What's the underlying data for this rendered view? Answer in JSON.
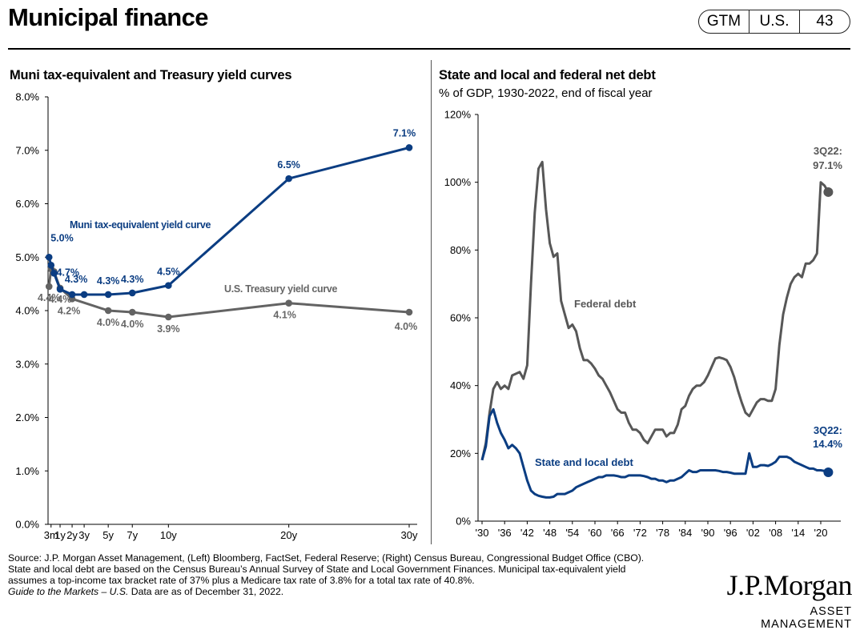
{
  "header": {
    "title": "Municipal finance",
    "badges": [
      "GTM",
      "U.S.",
      "43"
    ]
  },
  "chart_data": [
    {
      "type": "line",
      "title": "Muni tax-equivalent and Treasury yield curves",
      "x_tick_labels": [
        "3m",
        "1y",
        "2y",
        "3y",
        "5y",
        "7y",
        "10y",
        "20y",
        "30y"
      ],
      "x_tick_positions_years": [
        0.25,
        1,
        2,
        3,
        5,
        7,
        10,
        20,
        30
      ],
      "ylim": [
        0,
        8
      ],
      "y_tick_labels": [
        "0.0%",
        "1.0%",
        "2.0%",
        "3.0%",
        "4.0%",
        "5.0%",
        "6.0%",
        "7.0%",
        "8.0%"
      ],
      "grid": false,
      "series": [
        {
          "name": "Muni tax-equivalent yield curve",
          "color": "#0b3d82",
          "x": [
            0.083,
            0.25,
            0.5,
            1,
            2,
            3,
            5,
            7,
            10,
            20,
            30
          ],
          "y": [
            5.0,
            4.85,
            4.7,
            4.4,
            4.3,
            4.3,
            4.3,
            4.33,
            4.47,
            6.47,
            7.05
          ],
          "labels": [
            {
              "i": 0,
              "text": "5.0%"
            },
            {
              "i": 2,
              "text": "4.7%"
            },
            {
              "i": 5,
              "text": "4.3%"
            },
            {
              "i": 6,
              "text": "4.3%"
            },
            {
              "i": 7,
              "text": "4.3%"
            },
            {
              "i": 8,
              "text": "4.5%"
            },
            {
              "i": 9,
              "text": "6.5%"
            },
            {
              "i": 10,
              "text": "7.1%"
            }
          ]
        },
        {
          "name": "U.S. Treasury yield curve",
          "color": "#636363",
          "x": [
            0.083,
            0.25,
            0.5,
            1,
            2,
            5,
            7,
            10,
            20,
            30
          ],
          "y": [
            4.45,
            4.78,
            4.73,
            4.42,
            4.22,
            4.0,
            3.97,
            3.88,
            4.14,
            3.97
          ],
          "labels": [
            {
              "i": 0,
              "text": "4.4%"
            },
            {
              "i": 3,
              "text": "4.4%"
            },
            {
              "i": 4,
              "text": "4.2%"
            },
            {
              "i": 5,
              "text": "4.0%"
            },
            {
              "i": 6,
              "text": "4.0%"
            },
            {
              "i": 7,
              "text": "3.9%"
            },
            {
              "i": 8,
              "text": "4.1%"
            },
            {
              "i": 9,
              "text": "4.0%"
            }
          ]
        }
      ]
    },
    {
      "type": "line",
      "title": "State and local and federal net debt",
      "subtitle": "% of GDP, 1930-2022, end of fiscal year",
      "x_tick_labels": [
        "'30",
        "'36",
        "'42",
        "'48",
        "'54",
        "'60",
        "'66",
        "'72",
        "'78",
        "'84",
        "'90",
        "'96",
        "'02",
        "'08",
        "'14",
        "'20"
      ],
      "ylim": [
        0,
        120
      ],
      "y_tick_labels": [
        "0%",
        "20%",
        "40%",
        "60%",
        "80%",
        "100%",
        "120%"
      ],
      "grid": false,
      "series": [
        {
          "name": "Federal debt",
          "color": "#575757",
          "x": [
            1930,
            1931,
            1932,
            1933,
            1934,
            1935,
            1936,
            1937,
            1938,
            1939,
            1940,
            1941,
            1942,
            1943,
            1944,
            1945,
            1946,
            1947,
            1948,
            1949,
            1950,
            1951,
            1952,
            1953,
            1954,
            1955,
            1956,
            1957,
            1958,
            1959,
            1960,
            1961,
            1962,
            1963,
            1964,
            1965,
            1966,
            1967,
            1968,
            1969,
            1970,
            1971,
            1972,
            1973,
            1974,
            1975,
            1976,
            1977,
            1978,
            1979,
            1980,
            1981,
            1982,
            1983,
            1984,
            1985,
            1986,
            1987,
            1988,
            1989,
            1990,
            1991,
            1992,
            1993,
            1994,
            1995,
            1996,
            1997,
            1998,
            1999,
            2000,
            2001,
            2002,
            2003,
            2004,
            2005,
            2006,
            2007,
            2008,
            2009,
            2010,
            2011,
            2012,
            2013,
            2014,
            2015,
            2016,
            2017,
            2018,
            2019,
            2020,
            2021,
            2022
          ],
          "y": [
            18,
            23,
            32,
            39,
            41,
            39,
            40,
            39,
            43,
            43.5,
            44,
            42,
            46,
            70,
            91,
            104,
            106,
            92,
            82,
            78,
            79,
            65,
            61,
            57,
            58,
            56,
            51,
            47.5,
            47.5,
            46.5,
            45,
            43,
            42,
            40,
            38,
            35.5,
            33,
            32,
            32,
            29,
            27,
            27,
            26,
            24,
            23,
            25,
            27,
            27,
            27,
            25,
            26,
            26,
            28.5,
            33,
            34,
            37,
            39,
            40,
            40,
            41,
            43,
            45.5,
            48,
            48.3,
            48,
            47.5,
            45.5,
            42.5,
            38.5,
            35,
            32,
            31,
            33,
            35,
            36,
            36,
            35.5,
            35.5,
            39,
            52,
            61,
            66,
            70,
            72,
            73,
            72,
            76,
            76,
            77,
            79,
            100,
            99,
            97.1
          ]
        },
        {
          "name": "State and local debt",
          "color": "#0b3d82",
          "x": [
            1930,
            1931,
            1932,
            1933,
            1934,
            1935,
            1936,
            1937,
            1938,
            1939,
            1940,
            1941,
            1942,
            1943,
            1944,
            1945,
            1946,
            1947,
            1948,
            1949,
            1950,
            1951,
            1952,
            1953,
            1954,
            1955,
            1956,
            1957,
            1958,
            1959,
            1960,
            1961,
            1962,
            1963,
            1964,
            1965,
            1966,
            1967,
            1968,
            1969,
            1970,
            1971,
            1972,
            1973,
            1974,
            1975,
            1976,
            1977,
            1978,
            1979,
            1980,
            1981,
            1982,
            1983,
            1984,
            1985,
            1986,
            1987,
            1988,
            1989,
            1990,
            1991,
            1992,
            1993,
            1994,
            1995,
            1996,
            1997,
            1998,
            1999,
            2000,
            2001,
            2002,
            2003,
            2004,
            2005,
            2006,
            2007,
            2008,
            2009,
            2010,
            2011,
            2012,
            2013,
            2014,
            2015,
            2016,
            2017,
            2018,
            2019,
            2020,
            2021,
            2022
          ],
          "y": [
            18,
            22,
            31,
            33,
            29,
            26,
            24,
            21.5,
            22.5,
            21.5,
            20,
            16,
            12,
            9,
            8,
            7.5,
            7.2,
            7.0,
            7.0,
            7.2,
            8,
            8,
            8,
            8.5,
            9,
            10,
            10.5,
            11,
            11.5,
            12,
            12.5,
            13,
            13,
            13.5,
            13.5,
            13.5,
            13.3,
            13,
            13,
            13.5,
            13.5,
            13.5,
            13.5,
            13.3,
            13,
            12.5,
            12.5,
            12,
            12,
            11.5,
            12,
            12,
            12.5,
            13,
            14,
            15,
            14.5,
            14.5,
            15,
            15,
            15,
            15,
            15,
            14.8,
            14.5,
            14.5,
            14.3,
            14,
            14,
            14,
            14,
            20,
            16,
            16,
            16.5,
            16.5,
            16.3,
            16.8,
            17.5,
            19,
            19,
            19,
            18.5,
            17.5,
            17,
            16.5,
            16,
            15.5,
            15.5,
            15,
            15,
            14.8,
            14.4
          ]
        }
      ],
      "annotations": {
        "federal_end": [
          "3Q22:",
          "97.1%"
        ],
        "state_end": [
          "3Q22:",
          "14.4%"
        ]
      }
    }
  ],
  "footer": {
    "line1": "Source: J.P. Morgan Asset Management, (Left) Bloomberg, FactSet, Federal Reserve; (Right) Census Bureau, Congressional Budget Office (CBO).",
    "line2": "State and local debt are based on the Census Bureau’s Annual Survey of State and Local Government Finances. Municipal tax-equivalent yield",
    "line3": "assumes a top-income tax bracket rate of 37% plus a Medicare tax rate of 3.8% for a total tax rate of 40.8%.",
    "guide_italic": "Guide to the Markets – U.S.",
    "guide_rest": " Data are as of December 31, 2022."
  },
  "logo": {
    "main": "J.P.Morgan",
    "sub": "ASSET MANAGEMENT"
  },
  "colors": {
    "navy": "#0b3d82",
    "gray": "#636363",
    "dark_gray": "#575757",
    "text_gray": "#666666"
  }
}
